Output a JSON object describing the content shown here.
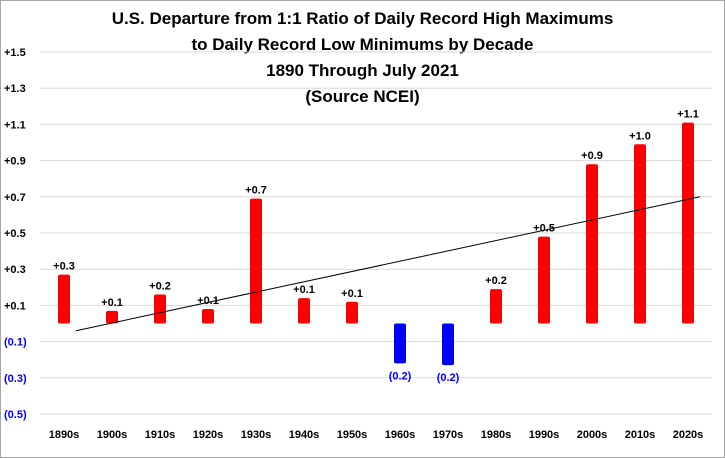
{
  "chart_data": {
    "type": "bar",
    "title_lines": [
      "U.S. Departure from 1:1 Ratio of Daily Record High Maximums",
      "to Daily Record Low Minimums by Decade",
      "1890 Through July 2021",
      "(Source NCEI)"
    ],
    "xlabel": "",
    "ylabel": "",
    "categories": [
      "1890s",
      "1900s",
      "1910s",
      "1920s",
      "1930s",
      "1940s",
      "1950s",
      "1960s",
      "1970s",
      "1980s",
      "1990s",
      "2000s",
      "2010s",
      "2020s"
    ],
    "values": [
      0.27,
      0.07,
      0.16,
      0.08,
      0.69,
      0.14,
      0.12,
      -0.22,
      -0.23,
      0.19,
      0.48,
      0.88,
      0.99,
      1.11
    ],
    "data_labels": [
      "+0.3",
      "+0.1",
      "+0.2",
      "+0.1",
      "+0.7",
      "+0.1",
      "+0.1",
      "(0.2)",
      "(0.2)",
      "+0.2",
      "+0.5",
      "+0.9",
      "+1.0",
      "+1.1"
    ],
    "ylim": [
      -0.5,
      1.5
    ],
    "y_ticks": [
      1.5,
      1.3,
      1.1,
      0.9,
      0.7,
      0.5,
      0.3,
      0.1,
      -0.1,
      -0.3,
      -0.5
    ],
    "y_tick_labels": [
      "+1.5",
      "+1.3",
      "+1.1",
      "+0.9",
      "+0.7",
      "+0.5",
      "+0.3",
      "+0.1",
      "(0.1)",
      "(0.3)",
      "(0.5)"
    ],
    "trendline": {
      "start_value": -0.04,
      "end_value": 0.7
    },
    "grid": true,
    "legend": "none",
    "colors": {
      "positive": "#ff0000",
      "negative": "#0000ff",
      "grid": "#d9d9d9",
      "positive_tick_text": "#000000",
      "negative_tick_text": "#0000ff",
      "trendline": "#000000"
    }
  }
}
